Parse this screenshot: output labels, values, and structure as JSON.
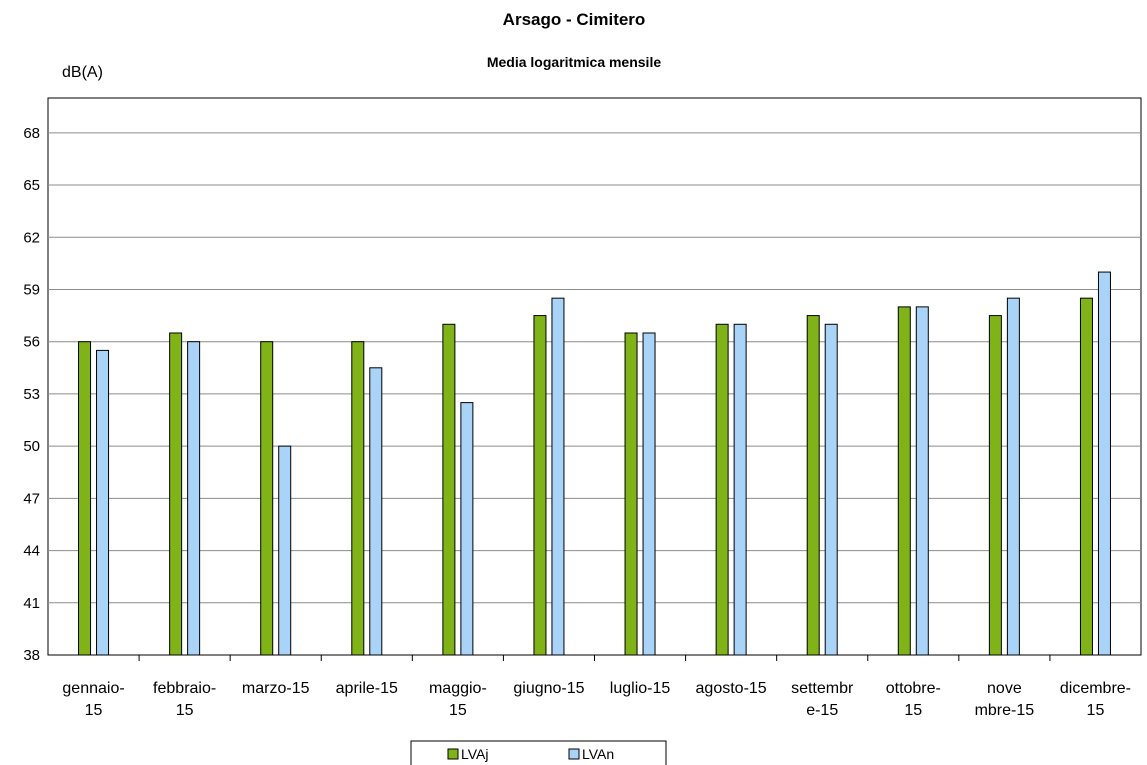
{
  "chart_data": {
    "type": "bar",
    "title": "Arsago - Cimitero",
    "subtitle": "Media logaritmica mensile",
    "ylabel": "dB(A)",
    "ylim": [
      38,
      70
    ],
    "yticks": [
      "38",
      "41",
      "44",
      "47",
      "50",
      "53",
      "56",
      "59",
      "62",
      "65",
      "68"
    ],
    "grid": true,
    "legend": "bottom-center",
    "categories": [
      [
        "gennaio-",
        "15"
      ],
      [
        "febbraio-",
        "15"
      ],
      [
        "marzo-15"
      ],
      [
        "aprile-15"
      ],
      [
        "maggio-",
        "15"
      ],
      [
        "giugno-15"
      ],
      [
        "luglio-15"
      ],
      [
        "agosto-15"
      ],
      [
        "settembr",
        "e-15"
      ],
      [
        "ottobre-",
        "15"
      ],
      [
        "nove",
        "mbre-15"
      ],
      [
        "dicembre-",
        "15"
      ]
    ],
    "series": [
      {
        "name": "LVAj",
        "color": "#7fb317",
        "values": [
          56,
          56.5,
          56,
          56,
          57,
          57.5,
          56.5,
          57,
          57.5,
          58,
          57.5,
          58.5
        ]
      },
      {
        "name": "LVAn",
        "color": "#a9d4f7",
        "values": [
          55.5,
          56,
          50,
          54.5,
          52.5,
          58.5,
          56.5,
          57,
          57,
          58,
          58.5,
          60
        ]
      }
    ]
  }
}
